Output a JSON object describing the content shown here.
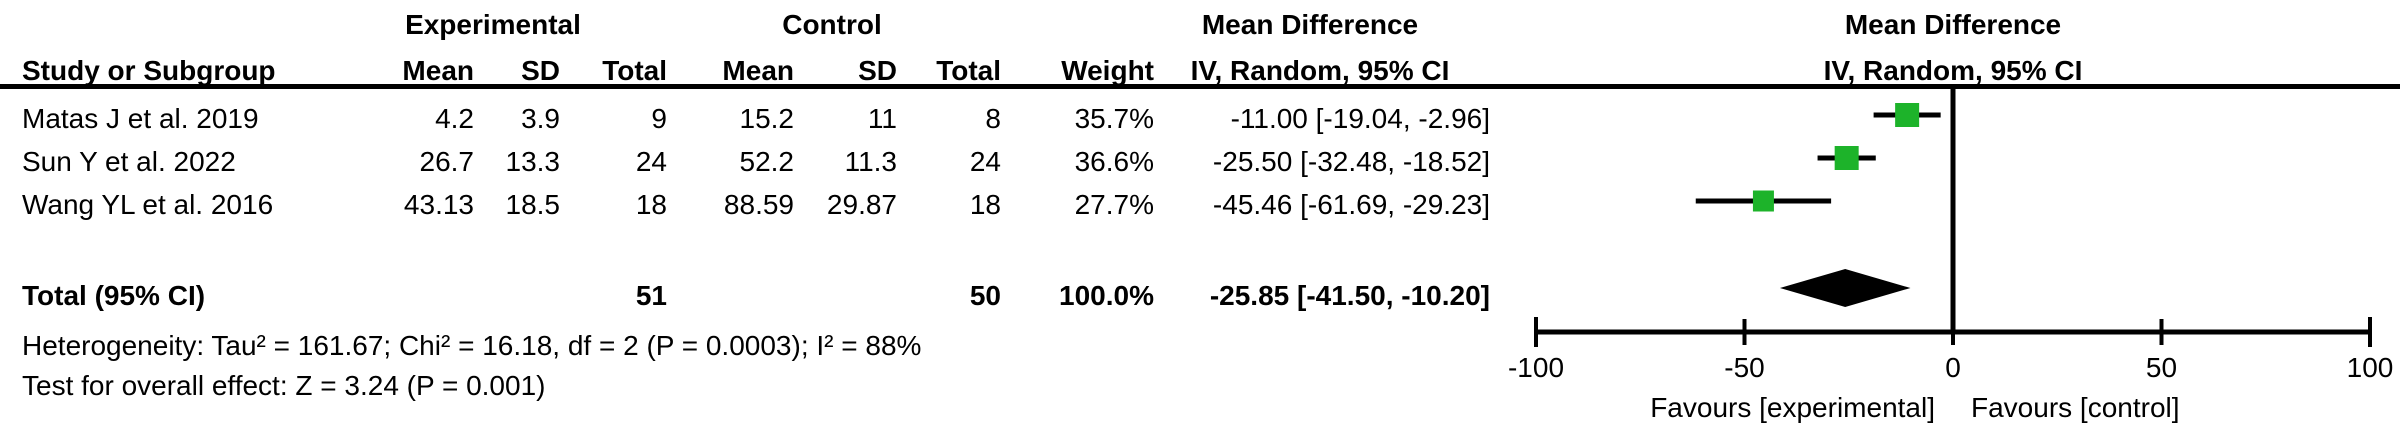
{
  "header": {
    "group_experimental": "Experimental",
    "group_control": "Control",
    "effect_title_left": "Mean Difference",
    "effect_title_right": "Mean Difference",
    "col_study": "Study or Subgroup",
    "col_mean_e": "Mean",
    "col_sd_e": "SD",
    "col_total_e": "Total",
    "col_mean_c": "Mean",
    "col_sd_c": "SD",
    "col_total_c": "Total",
    "col_weight": "Weight",
    "col_ci_left": "IV, Random, 95% CI",
    "col_ci_right": "IV, Random, 95% CI"
  },
  "rows": [
    {
      "study": "Matas J et al. 2019",
      "mean_e": "4.2",
      "sd_e": "3.9",
      "total_e": "9",
      "mean_c": "15.2",
      "sd_c": "11",
      "total_c": "8",
      "weight": "35.7%",
      "ci": "-11.00 [-19.04, -2.96]"
    },
    {
      "study": "Sun Y et al. 2022",
      "mean_e": "26.7",
      "sd_e": "13.3",
      "total_e": "24",
      "mean_c": "52.2",
      "sd_c": "11.3",
      "total_c": "24",
      "weight": "36.6%",
      "ci": "-25.50 [-32.48, -18.52]"
    },
    {
      "study": "Wang YL et al. 2016",
      "mean_e": "43.13",
      "sd_e": "18.5",
      "total_e": "18",
      "mean_c": "88.59",
      "sd_c": "29.87",
      "total_c": "18",
      "weight": "27.7%",
      "ci": "-45.46 [-61.69, -29.23]"
    }
  ],
  "total_row": {
    "label": "Total (95% CI)",
    "total_e": "51",
    "total_c": "50",
    "weight": "100.0%",
    "ci": "-25.85 [-41.50, -10.20]"
  },
  "footnotes": {
    "heterogeneity": "Heterogeneity: Tau² = 161.67; Chi² = 16.18, df = 2 (P = 0.0003); I² = 88%",
    "overall_effect": "Test for overall effect: Z = 3.24 (P = 0.001)"
  },
  "chart_data": {
    "type": "forest",
    "title": "Mean Difference  IV, Random, 95% CI",
    "axis": {
      "min": -100,
      "max": 100,
      "ticks": [
        -100,
        -50,
        0,
        50,
        100
      ]
    },
    "studies": [
      {
        "label": "Matas J et al. 2019",
        "md": -11.0,
        "ci_low": -19.04,
        "ci_high": -2.96,
        "weight_pct": 35.7
      },
      {
        "label": "Sun Y et al. 2022",
        "md": -25.5,
        "ci_low": -32.48,
        "ci_high": -18.52,
        "weight_pct": 36.6
      },
      {
        "label": "Wang YL et al. 2016",
        "md": -45.46,
        "ci_low": -61.69,
        "ci_high": -29.23,
        "weight_pct": 27.7
      }
    ],
    "total": {
      "md": -25.85,
      "ci_low": -41.5,
      "ci_high": -10.2,
      "weight_pct": 100.0
    },
    "favours_left": "Favours [experimental]",
    "favours_right": "Favours [control]",
    "marker_color": "#1db32a",
    "line_color": "#000000",
    "legend_position": "none",
    "grid": false
  }
}
